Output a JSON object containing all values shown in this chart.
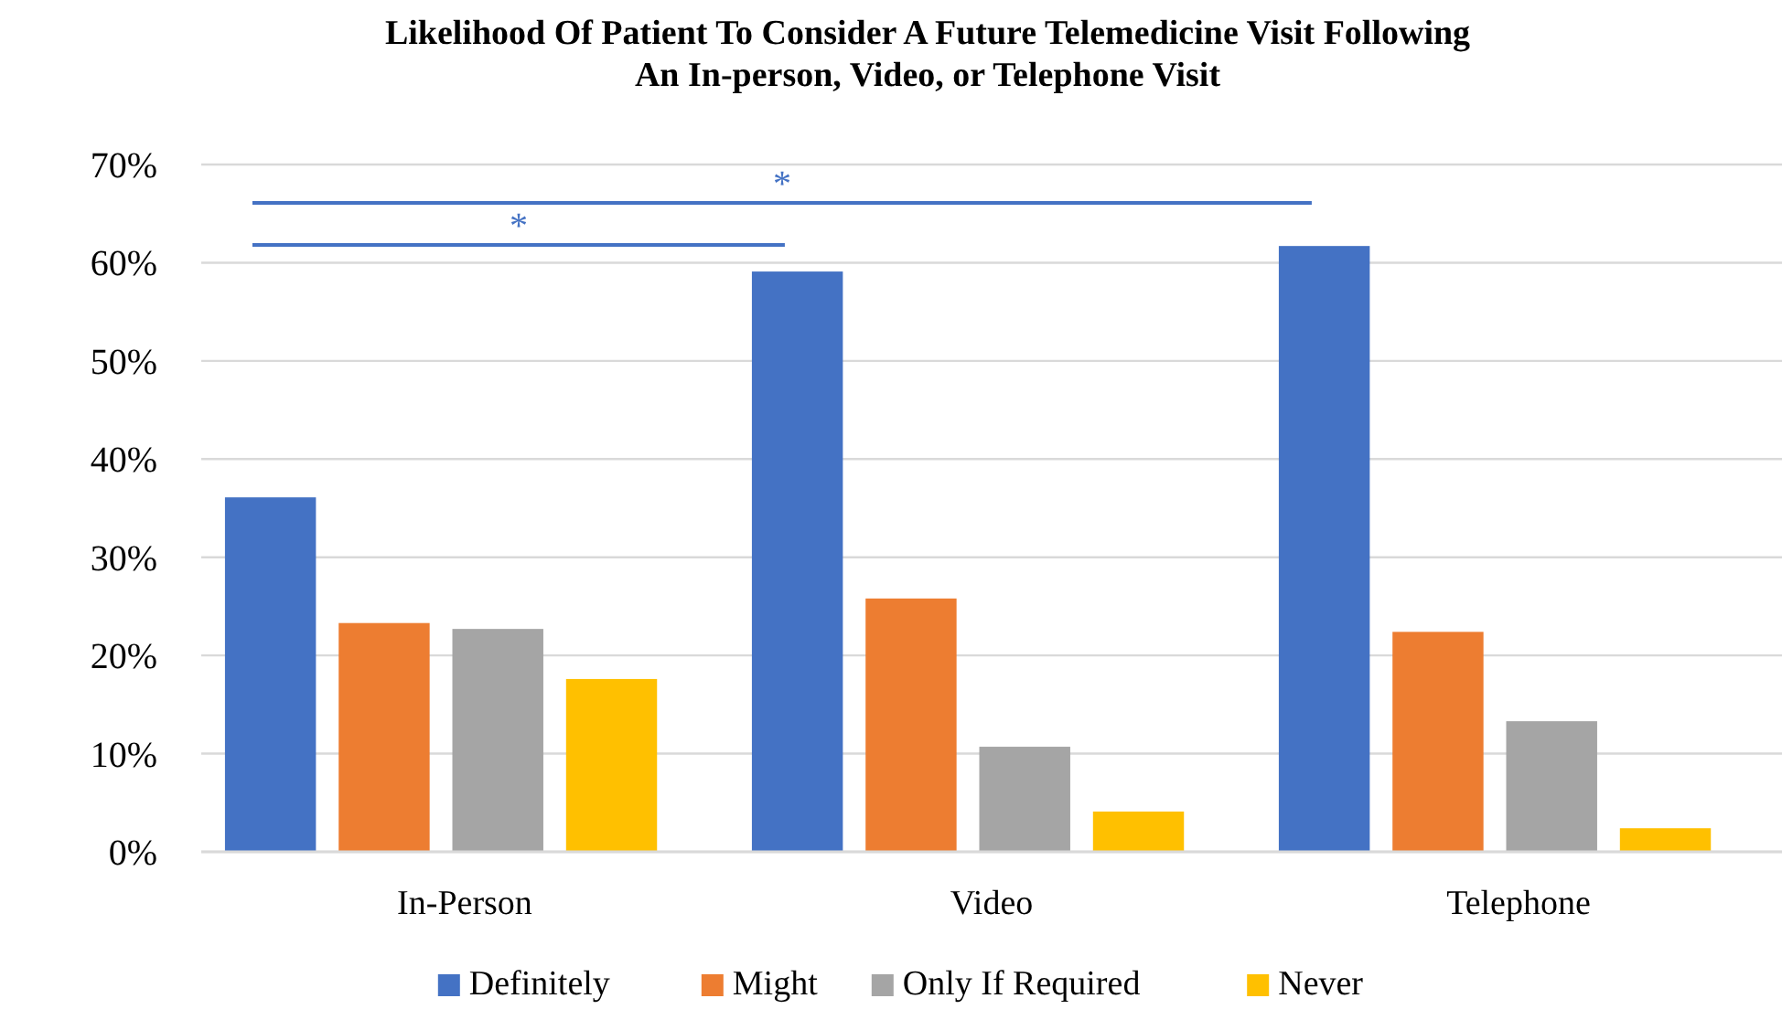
{
  "chart_data": {
    "type": "bar",
    "title": "Likelihood Of Patient To Consider A Future Telemedicine Visit Following\nAn In-person, Video, or Telephone Visit",
    "categories": [
      "In-Person",
      "Video",
      "Telephone"
    ],
    "series": [
      {
        "name": "Definitely",
        "color": "#4472c4",
        "values": [
          36.1,
          59.1,
          61.7
        ]
      },
      {
        "name": "Might",
        "color": "#ed7d31",
        "values": [
          23.3,
          25.8,
          22.4
        ]
      },
      {
        "name": "Only If Required",
        "color": "#a5a5a5",
        "values": [
          22.7,
          10.7,
          13.3
        ]
      },
      {
        "name": "Never",
        "color": "#ffc000",
        "values": [
          17.6,
          4.1,
          2.4
        ]
      }
    ],
    "ylim": [
      0,
      70
    ],
    "yticks": [
      {
        "value": 0,
        "label": "0%"
      },
      {
        "value": 10,
        "label": "10%"
      },
      {
        "value": 20,
        "label": "20%"
      },
      {
        "value": 30,
        "label": "30%"
      },
      {
        "value": 40,
        "label": "40%"
      },
      {
        "value": 50,
        "label": "50%"
      },
      {
        "value": 60,
        "label": "60%"
      },
      {
        "value": 70,
        "label": "70%"
      }
    ],
    "grid": "y",
    "legend": "bottom",
    "annotations": [
      "*",
      "*"
    ]
  }
}
